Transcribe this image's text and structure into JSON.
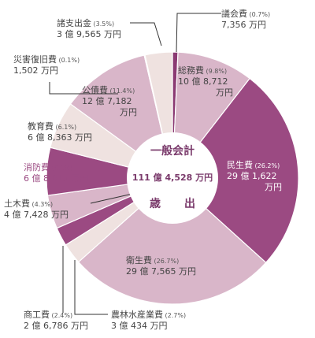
{
  "chart_data": {
    "type": "pie",
    "center": {
      "title": "一般会計",
      "total": "111 億 4,528 万円",
      "subtitle": "歳　出"
    },
    "slices": [
      {
        "name": "議会費",
        "pct_label": "(0.7%)",
        "amount": "7,356 万円",
        "value": 0.7,
        "color": "#8b3a73"
      },
      {
        "name": "総務費",
        "pct_label": "(9.8%)",
        "amount": "10 億 8,712 万円",
        "value": 9.8,
        "color": "#d9b6c9"
      },
      {
        "name": "民生費",
        "pct_label": "(26.2%)",
        "amount": "29 億 1,622 万円",
        "value": 26.2,
        "color": "#9b4a82"
      },
      {
        "name": "衛生費",
        "pct_label": "(26.7%)",
        "amount": "29 億 7,565 万円",
        "value": 26.7,
        "color": "#d9b6c9"
      },
      {
        "name": "農林水産業費",
        "pct_label": "(2.7%)",
        "amount": "3 億 434 万円",
        "value": 2.7,
        "color": "#efe2e0"
      },
      {
        "name": "商工費",
        "pct_label": "(2.4%)",
        "amount": "2 億 6,786 万円",
        "value": 2.4,
        "color": "#9b4a82"
      },
      {
        "name": "土木費",
        "pct_label": "(4.3%)",
        "amount": "4 億 7,428 万円",
        "value": 4.3,
        "color": "#d9b6c9"
      },
      {
        "name": "消防費",
        "pct_label": "(6.1%)",
        "amount": "6 億 8,013 万円",
        "value": 6.1,
        "color": "#9b4a82"
      },
      {
        "name": "教育費",
        "pct_label": "(6.1%)",
        "amount": "6 億 8,363 万円",
        "value": 6.1,
        "color": "#efe2e0"
      },
      {
        "name": "公債費",
        "pct_label": "(11.4%)",
        "amount": "12 億 7,182 万円",
        "value": 11.4,
        "color": "#d9b6c9"
      },
      {
        "name": "災害復旧費",
        "pct_label": "(0.1%)",
        "amount": "1,502 万円",
        "value": 0.1,
        "color": "#9b4a82"
      },
      {
        "name": "諸支出金",
        "pct_label": "(3.5%)",
        "amount": "3 億 9,565 万円",
        "value": 3.5,
        "color": "#efe2e0"
      }
    ]
  }
}
